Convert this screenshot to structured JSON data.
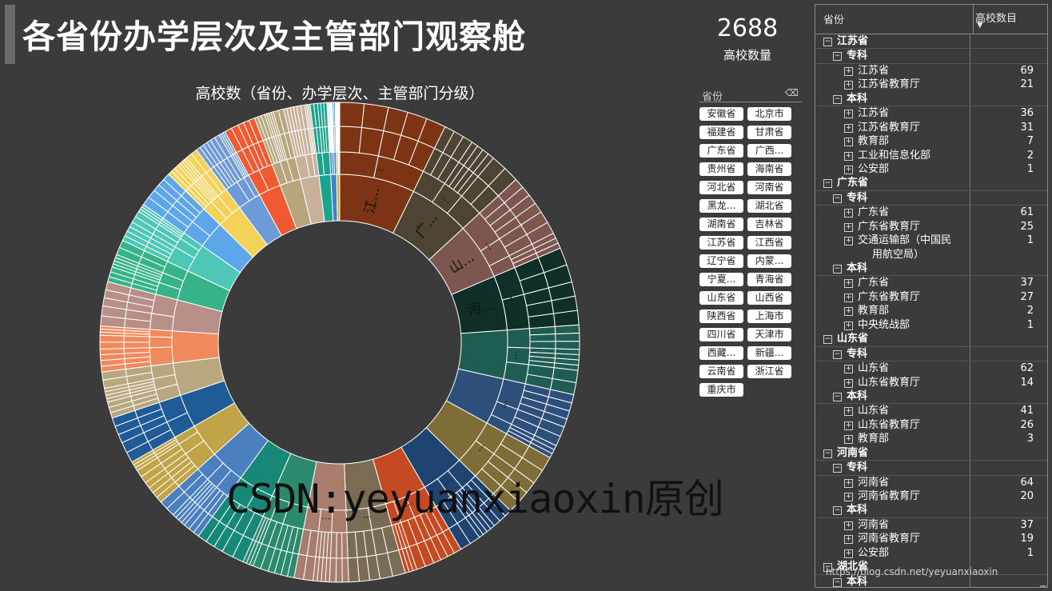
{
  "page": {
    "title": "各省份办学层次及主管部门观察舱"
  },
  "kpi": {
    "value": "2688",
    "label": "高校数量"
  },
  "chart": {
    "title": "高校数（省份、办学层次、主管部门分级）"
  },
  "chart_data": {
    "type": "sunburst",
    "inner_labels": [
      "江...",
      "广...",
      "山...",
      "河..."
    ],
    "ring_labels": [
      "...",
      "...",
      "...",
      "...",
      "...",
      "...",
      "...",
      "...",
      "...",
      "...",
      "..."
    ],
    "segments": [
      {
        "color": "#7d3414",
        "value": 194
      },
      {
        "color": "#4d4434",
        "value": 158
      },
      {
        "color": "#7e5650",
        "value": 146
      },
      {
        "color": "#0f2f28",
        "value": 141
      },
      {
        "color": "#1f5c52",
        "value": 125
      },
      {
        "color": "#2e4f7a",
        "value": 120
      },
      {
        "color": "#7f6d37",
        "value": 118
      },
      {
        "color": "#1f4472",
        "value": 112
      },
      {
        "color": "#c54a22",
        "value": 108
      },
      {
        "color": "#7a6b55",
        "value": 102
      },
      {
        "color": "#a87d6d",
        "value": 98
      },
      {
        "color": "#2b8a6d",
        "value": 95
      },
      {
        "color": "#178777",
        "value": 92
      },
      {
        "color": "#4a7fc0",
        "value": 90
      },
      {
        "color": "#c0a447",
        "value": 88
      },
      {
        "color": "#1f5b96",
        "value": 86
      },
      {
        "color": "#b8a77f",
        "value": 84
      },
      {
        "color": "#f08a5d",
        "value": 82
      },
      {
        "color": "#b78f86",
        "value": 80
      },
      {
        "color": "#37b38a",
        "value": 78
      },
      {
        "color": "#4ec7b6",
        "value": 74
      },
      {
        "color": "#5ea6ea",
        "value": 70
      },
      {
        "color": "#f3d257",
        "value": 66
      },
      {
        "color": "#6f9ad8",
        "value": 60
      },
      {
        "color": "#ef5a32",
        "value": 58
      },
      {
        "color": "#b7a57c",
        "value": 54
      },
      {
        "color": "#c8b09a",
        "value": 48
      },
      {
        "color": "#1aa38d",
        "value": 30
      },
      {
        "color": "#3b84c6",
        "value": 15
      },
      {
        "color": "#d9b03d",
        "value": 8
      }
    ]
  },
  "slicer": {
    "header": "省份",
    "items": [
      "安徽省",
      "北京市",
      "福建省",
      "甘肃省",
      "广东省",
      "广西...",
      "贵州省",
      "海南省",
      "河北省",
      "河南省",
      "黑龙...",
      "湖北省",
      "湖南省",
      "吉林省",
      "江苏省",
      "江西省",
      "辽宁省",
      "内蒙...",
      "宁夏...",
      "青海省",
      "山东省",
      "山西省",
      "陕西省",
      "上海市",
      "四川省",
      "天津市",
      "西藏...",
      "新疆...",
      "云南省",
      "浙江省",
      "重庆市"
    ]
  },
  "matrix": {
    "col1": "省份",
    "col2": "高校数目",
    "rows": [
      {
        "level": 0,
        "label": "江苏省",
        "value": ""
      },
      {
        "level": 1,
        "label": "专科",
        "value": ""
      },
      {
        "level": 2,
        "label": "江苏省",
        "value": "69"
      },
      {
        "level": 2,
        "label": "江苏省教育厅",
        "value": "21"
      },
      {
        "level": 1,
        "label": "本科",
        "value": ""
      },
      {
        "level": 2,
        "label": "江苏省",
        "value": "36"
      },
      {
        "level": 2,
        "label": "江苏省教育厅",
        "value": "31"
      },
      {
        "level": 2,
        "label": "教育部",
        "value": "7"
      },
      {
        "level": 2,
        "label": "工业和信息化部",
        "value": "2"
      },
      {
        "level": 2,
        "label": "公安部",
        "value": "1"
      },
      {
        "level": 0,
        "label": "广东省",
        "value": ""
      },
      {
        "level": 1,
        "label": "专科",
        "value": ""
      },
      {
        "level": 2,
        "label": "广东省",
        "value": "61"
      },
      {
        "level": 2,
        "label": "广东省教育厅",
        "value": "25"
      },
      {
        "level": 2,
        "label": "交通运输部（中国民",
        "value": "1"
      },
      {
        "level": 3,
        "label": "用航空局）",
        "value": ""
      },
      {
        "level": 1,
        "label": "本科",
        "value": ""
      },
      {
        "level": 2,
        "label": "广东省",
        "value": "37"
      },
      {
        "level": 2,
        "label": "广东省教育厅",
        "value": "27"
      },
      {
        "level": 2,
        "label": "教育部",
        "value": "2"
      },
      {
        "level": 2,
        "label": "中央统战部",
        "value": "1"
      },
      {
        "level": 0,
        "label": "山东省",
        "value": ""
      },
      {
        "level": 1,
        "label": "专科",
        "value": ""
      },
      {
        "level": 2,
        "label": "山东省",
        "value": "62"
      },
      {
        "level": 2,
        "label": "山东省教育厅",
        "value": "14"
      },
      {
        "level": 1,
        "label": "本科",
        "value": ""
      },
      {
        "level": 2,
        "label": "山东省",
        "value": "41"
      },
      {
        "level": 2,
        "label": "山东省教育厅",
        "value": "26"
      },
      {
        "level": 2,
        "label": "教育部",
        "value": "3"
      },
      {
        "level": 0,
        "label": "河南省",
        "value": ""
      },
      {
        "level": 1,
        "label": "专科",
        "value": ""
      },
      {
        "level": 2,
        "label": "河南省",
        "value": "64"
      },
      {
        "level": 2,
        "label": "河南省教育厅",
        "value": "20"
      },
      {
        "level": 1,
        "label": "本科",
        "value": ""
      },
      {
        "level": 2,
        "label": "河南省",
        "value": "37"
      },
      {
        "level": 2,
        "label": "河南省教育厅",
        "value": "19"
      },
      {
        "level": 2,
        "label": "公安部",
        "value": "1"
      },
      {
        "level": 0,
        "label": "湖北省",
        "value": ""
      },
      {
        "level": 1,
        "label": "本科",
        "value": ""
      }
    ]
  },
  "watermark": {
    "text": "CSDN:yeyuanxiaoxin原创",
    "url": "https://blog.csdn.net/yeyuanxiaoxin"
  },
  "icons": {
    "eraser": "eraser-icon",
    "sort": "sort-desc-icon",
    "expand": "plus-box-icon",
    "collapse": "minus-box-icon"
  }
}
